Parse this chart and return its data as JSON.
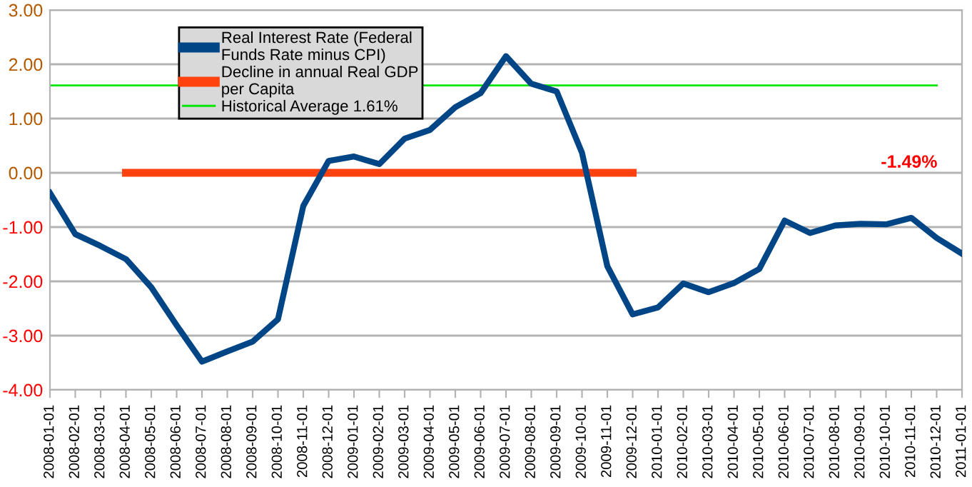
{
  "chart_data": {
    "type": "line",
    "categories": [
      "2008-01-01",
      "2008-02-01",
      "2008-03-01",
      "2008-04-01",
      "2008-05-01",
      "2008-06-01",
      "2008-07-01",
      "2008-08-01",
      "2008-09-01",
      "2008-10-01",
      "2008-11-01",
      "2008-12-01",
      "2009-01-01",
      "2009-02-01",
      "2009-03-01",
      "2009-04-01",
      "2009-05-01",
      "2009-06-01",
      "2009-07-01",
      "2009-08-01",
      "2009-09-01",
      "2009-10-01",
      "2009-11-01",
      "2009-12-01",
      "2010-01-01",
      "2010-02-01",
      "2010-03-01",
      "2010-04-01",
      "2010-05-01",
      "2010-06-01",
      "2010-07-01",
      "2010-08-01",
      "2010-09-01",
      "2010-10-01",
      "2010-11-01",
      "2010-12-01",
      "2011-01-01"
    ],
    "series": [
      {
        "name": "Real Interest Rate (Federal\nFunds Rate minus CPI)",
        "color": "#004586",
        "values": [
          -0.37,
          -1.13,
          -1.35,
          -1.59,
          -2.11,
          -2.81,
          -3.48,
          -3.29,
          -3.11,
          -2.7,
          -0.61,
          0.22,
          0.3,
          0.16,
          0.63,
          0.79,
          1.21,
          1.47,
          2.15,
          1.64,
          1.5,
          0.37,
          -1.72,
          -2.61,
          -2.48,
          -2.04,
          -2.2,
          -2.03,
          -1.77,
          -0.88,
          -1.11,
          -0.97,
          -0.94,
          -0.95,
          -0.83,
          -1.2,
          -1.49
        ]
      },
      {
        "name": "Decline in annual Real GDP\nper Capita",
        "color": "#ff420e",
        "values": [
          null,
          null,
          null,
          0,
          0,
          0,
          0,
          0,
          0,
          0,
          0,
          0,
          0,
          0,
          0,
          0,
          0,
          0,
          0,
          0,
          0,
          0,
          0,
          0,
          null,
          null,
          null,
          null,
          null,
          null,
          null,
          null,
          null,
          null,
          null,
          null,
          null
        ]
      }
    ],
    "ref_lines": [
      {
        "axis": "y",
        "value": 1.61,
        "label": "Historical Average 1.61%",
        "color": "#00e600",
        "line_style": "solid"
      }
    ],
    "annotations": [
      "-1.49%"
    ],
    "ylim": [
      -4,
      3
    ],
    "yticks": [
      {
        "value": -4,
        "label": "-4.00"
      },
      {
        "value": -3,
        "label": "-3.00"
      },
      {
        "value": -2,
        "label": "-2.00"
      },
      {
        "value": -1,
        "label": "-1.00"
      },
      {
        "value": 0,
        "label": "0.00"
      },
      {
        "value": 1,
        "label": "1.00"
      },
      {
        "value": 2,
        "label": "2.00"
      },
      {
        "value": 3,
        "label": "3.00"
      }
    ],
    "grid": "y",
    "legend": "top",
    "marker": "none",
    "line_style": "solid"
  }
}
